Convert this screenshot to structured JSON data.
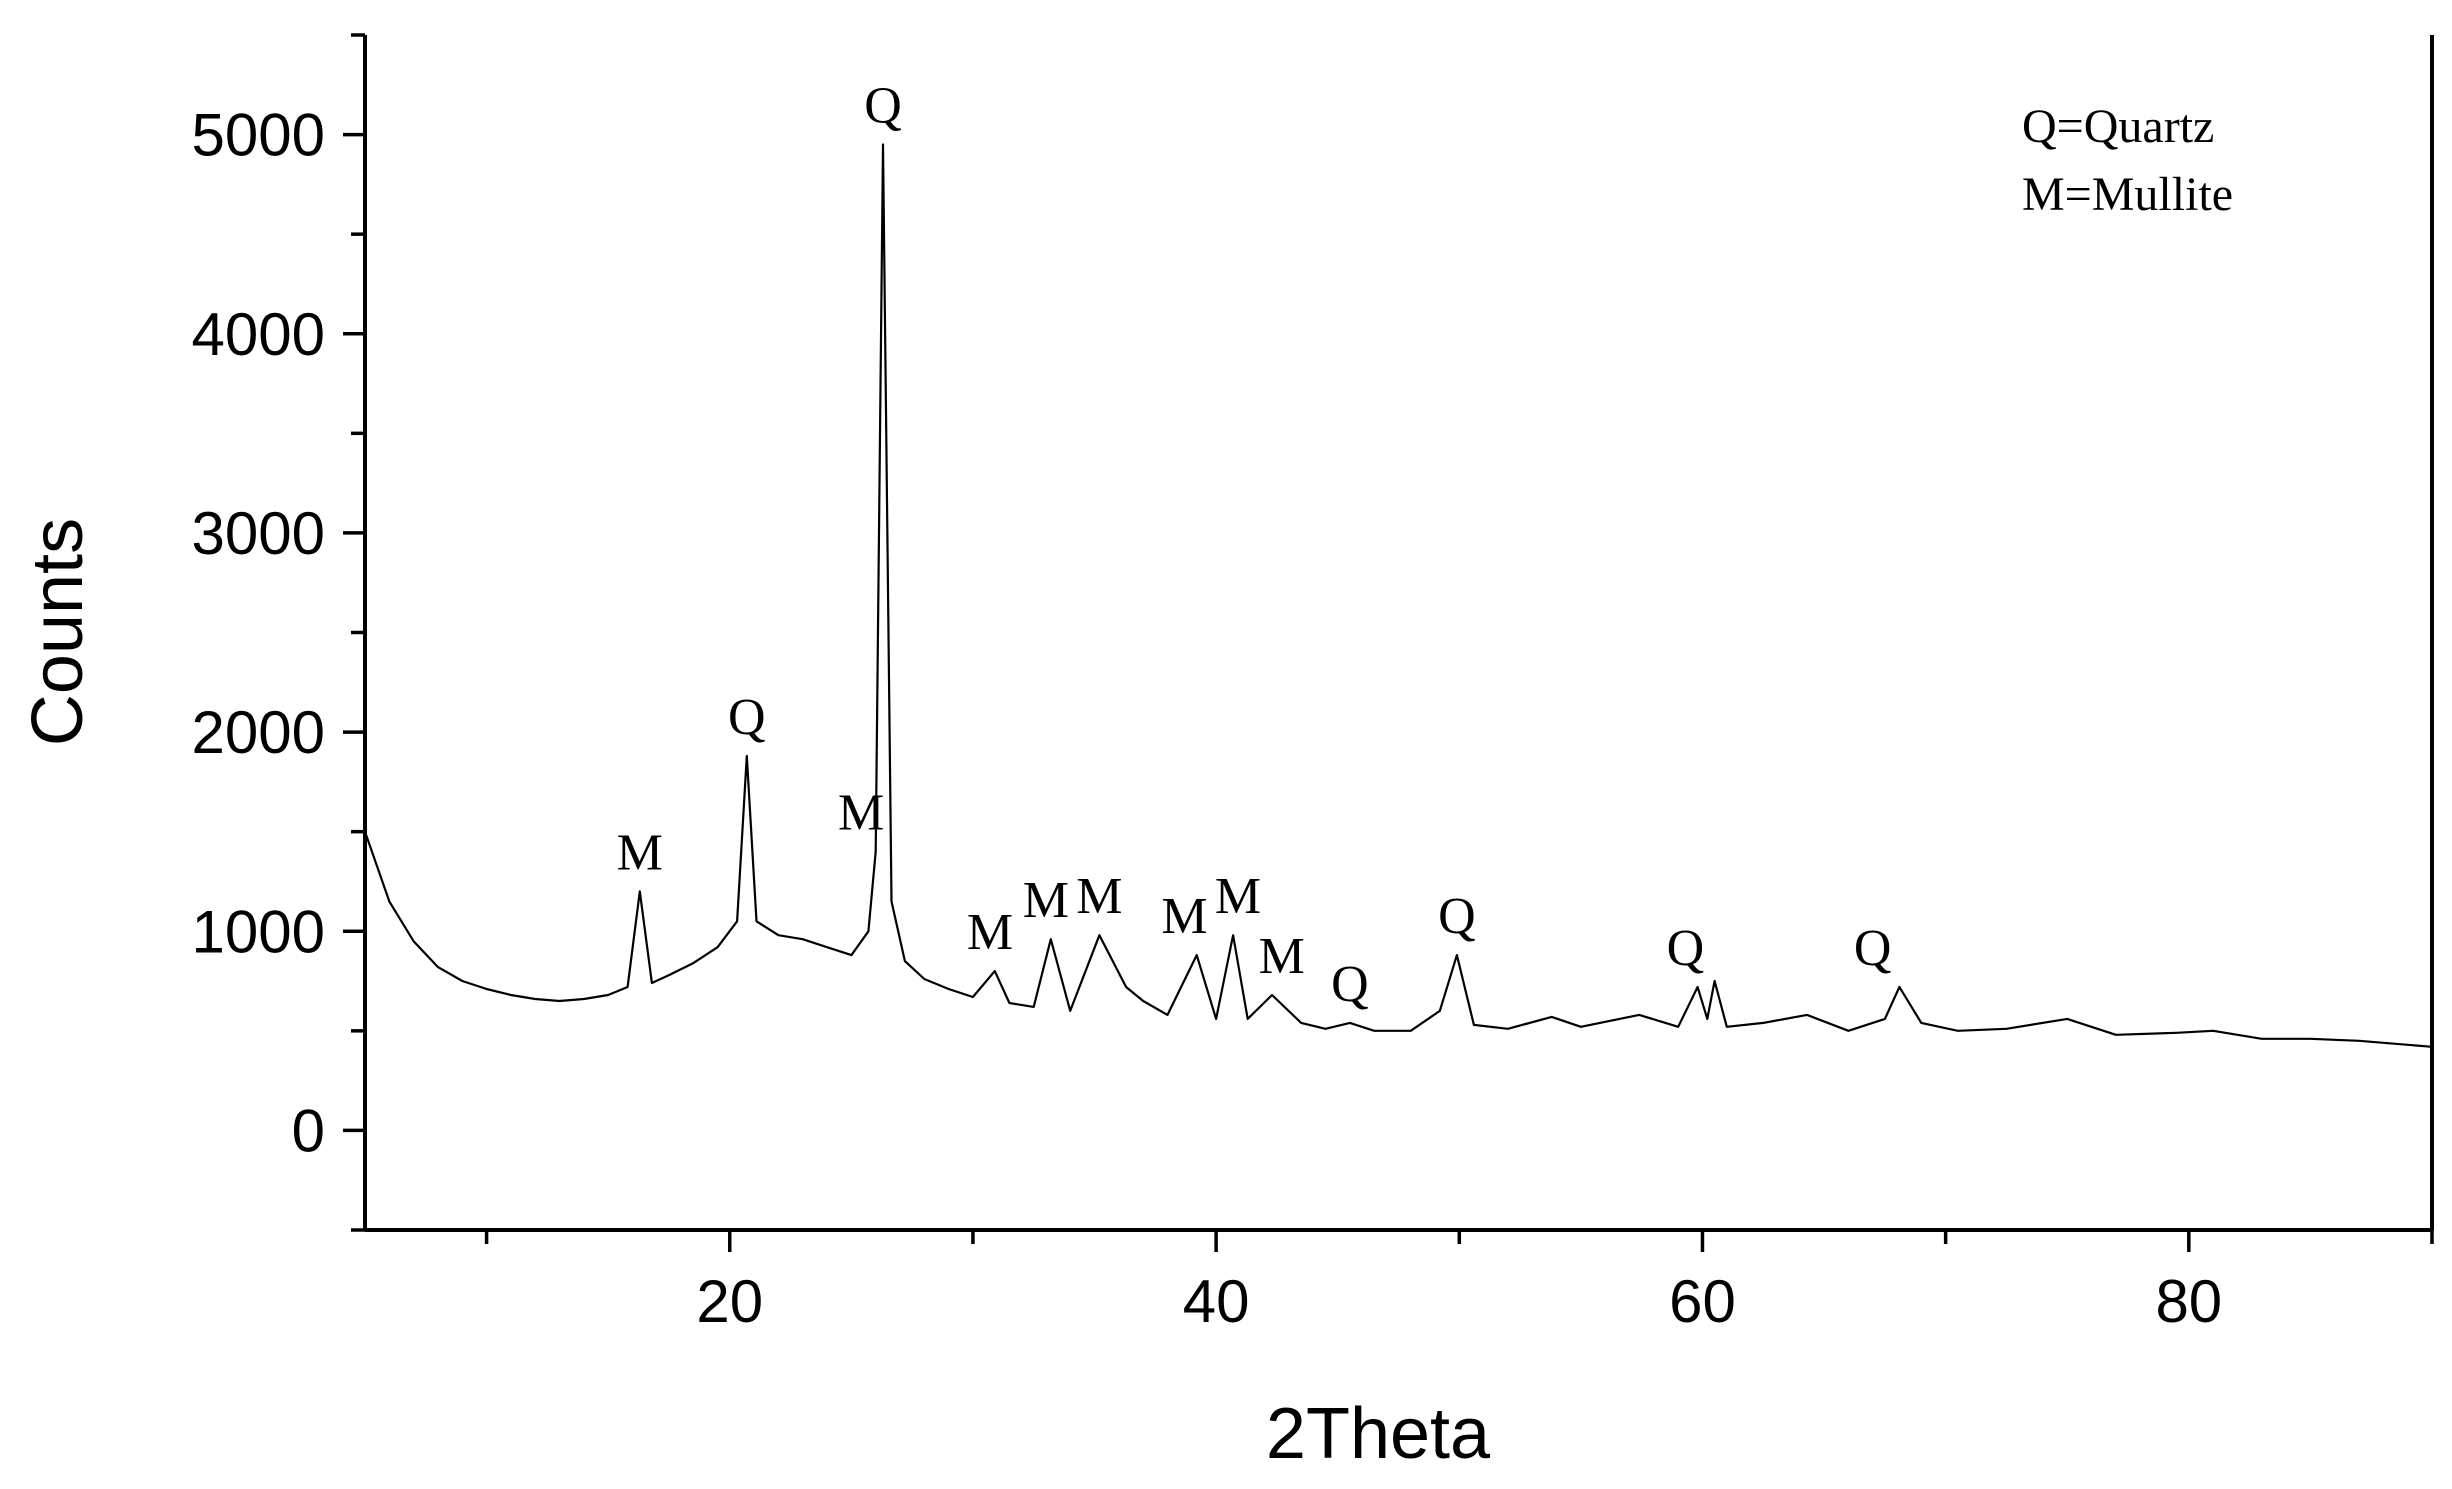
{
  "chart_data": {
    "type": "line",
    "title": "",
    "xlabel": "2Theta",
    "ylabel": "Counts",
    "xlim": [
      5,
      90
    ],
    "ylim": [
      -500,
      5500
    ],
    "x_ticks": [
      20,
      40,
      60,
      80
    ],
    "y_ticks": [
      0,
      1000,
      2000,
      3000,
      4000,
      5000
    ],
    "x_tick_labels": [
      "20",
      "40",
      "60",
      "80"
    ],
    "y_tick_labels": [
      "0",
      "1000",
      "2000",
      "3000",
      "4000",
      "5000"
    ],
    "grid": false,
    "legend": {
      "placement": "top-right",
      "entries": [
        "Q=Quartz",
        "M=Mullite"
      ]
    },
    "series": [
      {
        "x": [
          5,
          6,
          7,
          8,
          9,
          10,
          11,
          12,
          13,
          14,
          15,
          15.8,
          16.3,
          16.8,
          17.5,
          18.5,
          19.5,
          20.3,
          20.7,
          21.1,
          22,
          23,
          24,
          25,
          25.7,
          26.0,
          26.3,
          26.65,
          27.2,
          28,
          29,
          30,
          30.9,
          31.5,
          32.5,
          33.2,
          34,
          35.2,
          36.3,
          37,
          38,
          39.2,
          40,
          40.7,
          41.3,
          42.3,
          43.5,
          44.5,
          45.5,
          46.5,
          48,
          49.2,
          49.9,
          50.6,
          52,
          53.8,
          55,
          57.4,
          59,
          59.8,
          60.2,
          60.5,
          61,
          62.5,
          64.3,
          66,
          67.5,
          68.1,
          69,
          70.5,
          72.5,
          75,
          77,
          79.5,
          81,
          83,
          85,
          87,
          90
        ],
        "y": [
          1500,
          1150,
          950,
          820,
          750,
          710,
          680,
          660,
          650,
          660,
          680,
          720,
          1200,
          740,
          780,
          840,
          920,
          1050,
          1880,
          1050,
          980,
          960,
          920,
          880,
          1000,
          1400,
          4950,
          1150,
          850,
          760,
          710,
          670,
          800,
          640,
          620,
          960,
          600,
          980,
          720,
          650,
          580,
          880,
          560,
          980,
          560,
          680,
          540,
          510,
          540,
          500,
          500,
          600,
          880,
          530,
          510,
          570,
          520,
          580,
          520,
          720,
          560,
          750,
          520,
          540,
          580,
          500,
          560,
          720,
          540,
          500,
          510,
          560,
          480,
          490,
          500,
          460,
          460,
          450,
          420
        ]
      }
    ],
    "annotations": [
      {
        "text": "M",
        "x": 16.3,
        "y": 1200
      },
      {
        "text": "Q",
        "x": 20.7,
        "y": 1880
      },
      {
        "text": "M",
        "x": 25.4,
        "y": 1400
      },
      {
        "text": "Q",
        "x": 26.3,
        "y": 4950
      },
      {
        "text": "M",
        "x": 30.7,
        "y": 800
      },
      {
        "text": "M",
        "x": 33.0,
        "y": 960
      },
      {
        "text": "M",
        "x": 35.2,
        "y": 980
      },
      {
        "text": "M",
        "x": 38.7,
        "y": 880
      },
      {
        "text": "M",
        "x": 40.9,
        "y": 980
      },
      {
        "text": "M",
        "x": 42.7,
        "y": 680
      },
      {
        "text": "Q",
        "x": 45.5,
        "y": 540
      },
      {
        "text": "Q",
        "x": 49.9,
        "y": 880
      },
      {
        "text": "Q",
        "x": 59.3,
        "y": 720
      },
      {
        "text": "Q",
        "x": 67.0,
        "y": 720
      }
    ]
  }
}
